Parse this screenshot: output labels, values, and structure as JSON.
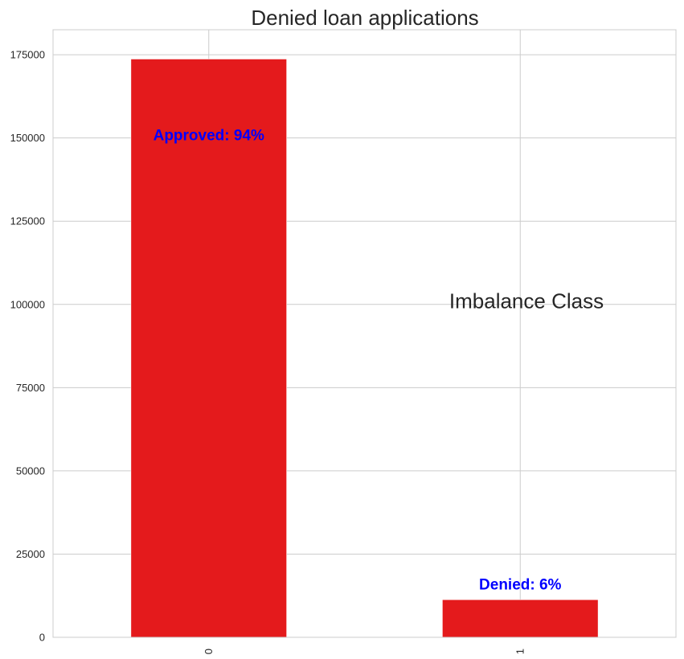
{
  "chart_data": {
    "type": "bar",
    "title": "Denied loan applications",
    "xlabel": "",
    "ylabel": "",
    "categories": [
      "0",
      "1"
    ],
    "values": [
      173700,
      11300
    ],
    "ylim": [
      0,
      182500
    ],
    "yticks": [
      0,
      25000,
      50000,
      75000,
      100000,
      125000,
      150000,
      175000
    ],
    "ytick_labels": [
      "0",
      "25000",
      "50000",
      "75000",
      "100000",
      "125000",
      "150000",
      "175000"
    ],
    "grid": true,
    "bar_color": "#e41a1c",
    "label_color": "#0000ff",
    "bar_labels": [
      {
        "text": "Approved: 94%",
        "y": 151000
      },
      {
        "text": "Denied: 6%",
        "y": 16000
      }
    ],
    "annotation": {
      "text": "Imbalance Class",
      "x": 1.02,
      "y": 101000
    }
  }
}
